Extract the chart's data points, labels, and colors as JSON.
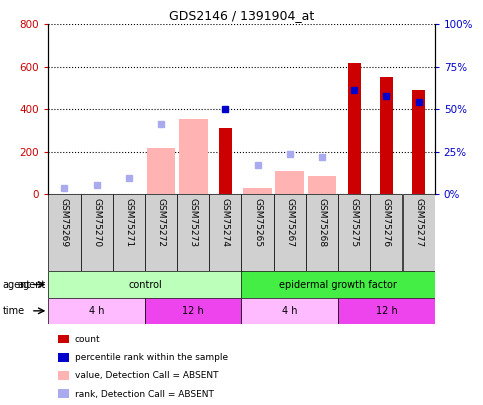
{
  "title": "GDS2146 / 1391904_at",
  "samples": [
    "GSM75269",
    "GSM75270",
    "GSM75271",
    "GSM75272",
    "GSM75273",
    "GSM75274",
    "GSM75265",
    "GSM75267",
    "GSM75268",
    "GSM75275",
    "GSM75276",
    "GSM75277"
  ],
  "count_values": [
    null,
    null,
    null,
    null,
    null,
    310,
    null,
    null,
    null,
    620,
    550,
    490
  ],
  "count_color": "#cc0000",
  "absent_bar_values": [
    null,
    null,
    null,
    220,
    355,
    null,
    30,
    110,
    85,
    null,
    null,
    null
  ],
  "absent_bar_color": "#ffb3b3",
  "rank_absent_values": [
    30,
    45,
    75,
    330,
    null,
    null,
    140,
    190,
    175,
    null,
    null,
    null
  ],
  "rank_absent_color": "#aaaaee",
  "percentile_values": [
    null,
    null,
    null,
    null,
    null,
    400,
    null,
    null,
    null,
    490,
    465,
    435
  ],
  "percentile_color": "#0000cc",
  "ylim_left": [
    0,
    800
  ],
  "ylim_right": [
    0,
    100
  ],
  "yticks_left": [
    0,
    200,
    400,
    600,
    800
  ],
  "yticks_right": [
    0,
    25,
    50,
    75,
    100
  ],
  "ytick_labels_left": [
    "0",
    "200",
    "400",
    "600",
    "800"
  ],
  "ytick_labels_right": [
    "0%",
    "25%",
    "50%",
    "75%",
    "100%"
  ],
  "agent_groups": [
    {
      "label": "control",
      "start": 0,
      "end": 6,
      "color": "#bbffbb"
    },
    {
      "label": "epidermal growth factor",
      "start": 6,
      "end": 12,
      "color": "#44ee44"
    }
  ],
  "time_groups": [
    {
      "label": "4 h",
      "start": 0,
      "end": 3,
      "color": "#ffbbff"
    },
    {
      "label": "12 h",
      "start": 3,
      "end": 6,
      "color": "#ee44ee"
    },
    {
      "label": "4 h",
      "start": 6,
      "end": 9,
      "color": "#ffbbff"
    },
    {
      "label": "12 h",
      "start": 9,
      "end": 12,
      "color": "#ee44ee"
    }
  ],
  "legend_items": [
    {
      "label": "count",
      "color": "#cc0000"
    },
    {
      "label": "percentile rank within the sample",
      "color": "#0000cc"
    },
    {
      "label": "value, Detection Call = ABSENT",
      "color": "#ffb3b3"
    },
    {
      "label": "rank, Detection Call = ABSENT",
      "color": "#aaaaee"
    }
  ],
  "agent_row_label": "agent",
  "time_row_label": "time",
  "bg_color": "#ffffff",
  "plot_bg_color": "#ffffff",
  "grid_color": "black",
  "sample_box_color": "#d0d0d0"
}
